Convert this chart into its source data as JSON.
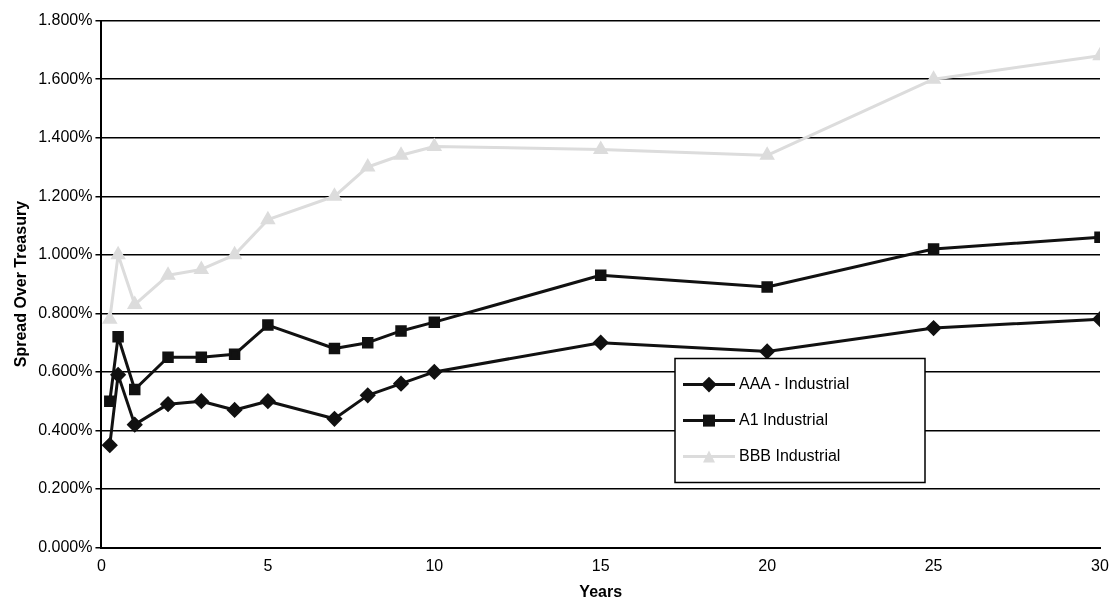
{
  "chart_data": {
    "type": "line",
    "xlabel": "Years",
    "ylabel": "Spread Over Treasury",
    "xlim": [
      0,
      30
    ],
    "xticks": [
      0,
      5,
      10,
      15,
      20,
      25,
      30
    ],
    "ylim": [
      0,
      1.8
    ],
    "yticks": [
      {
        "value": 0,
        "label": "0.000%"
      },
      {
        "value": 0.2,
        "label": "0.200%"
      },
      {
        "value": 0.4,
        "label": "0.400%"
      },
      {
        "value": 0.6,
        "label": "0.600%"
      },
      {
        "value": 0.8,
        "label": "0.800%"
      },
      {
        "value": 1,
        "label": "1.000%"
      },
      {
        "value": 1.2,
        "label": "1.200%"
      },
      {
        "value": 1.4,
        "label": "1.400%"
      },
      {
        "value": 1.6,
        "label": "1.600%"
      },
      {
        "value": 1.8,
        "label": "1.800%"
      }
    ],
    "x": [
      0.25,
      0.5,
      1,
      2,
      3,
      4,
      5,
      7,
      8,
      9,
      10,
      15,
      20,
      25,
      30
    ],
    "grid": "y",
    "legend": "bottom right",
    "series": [
      {
        "name": "AAA - Industrial",
        "color": "#111111",
        "marker": "diamond",
        "values": [
          0.35,
          0.59,
          0.42,
          0.49,
          0.5,
          0.47,
          0.5,
          0.44,
          0.52,
          0.56,
          0.6,
          0.7,
          0.67,
          0.75,
          0.78
        ]
      },
      {
        "name": "A1 Industrial",
        "color": "#111111",
        "marker": "square",
        "values": [
          0.5,
          0.72,
          0.54,
          0.65,
          0.65,
          0.66,
          0.76,
          0.68,
          0.7,
          0.74,
          0.77,
          0.93,
          0.89,
          1.02,
          1.06
        ]
      },
      {
        "name": "BBB Industrial",
        "color": "#dcdcdc",
        "marker": "triangle",
        "values": [
          0.78,
          1.0,
          0.83,
          0.93,
          0.95,
          1.0,
          1.12,
          1.2,
          1.3,
          1.34,
          1.37,
          1.36,
          1.34,
          1.6,
          1.68
        ]
      }
    ]
  }
}
